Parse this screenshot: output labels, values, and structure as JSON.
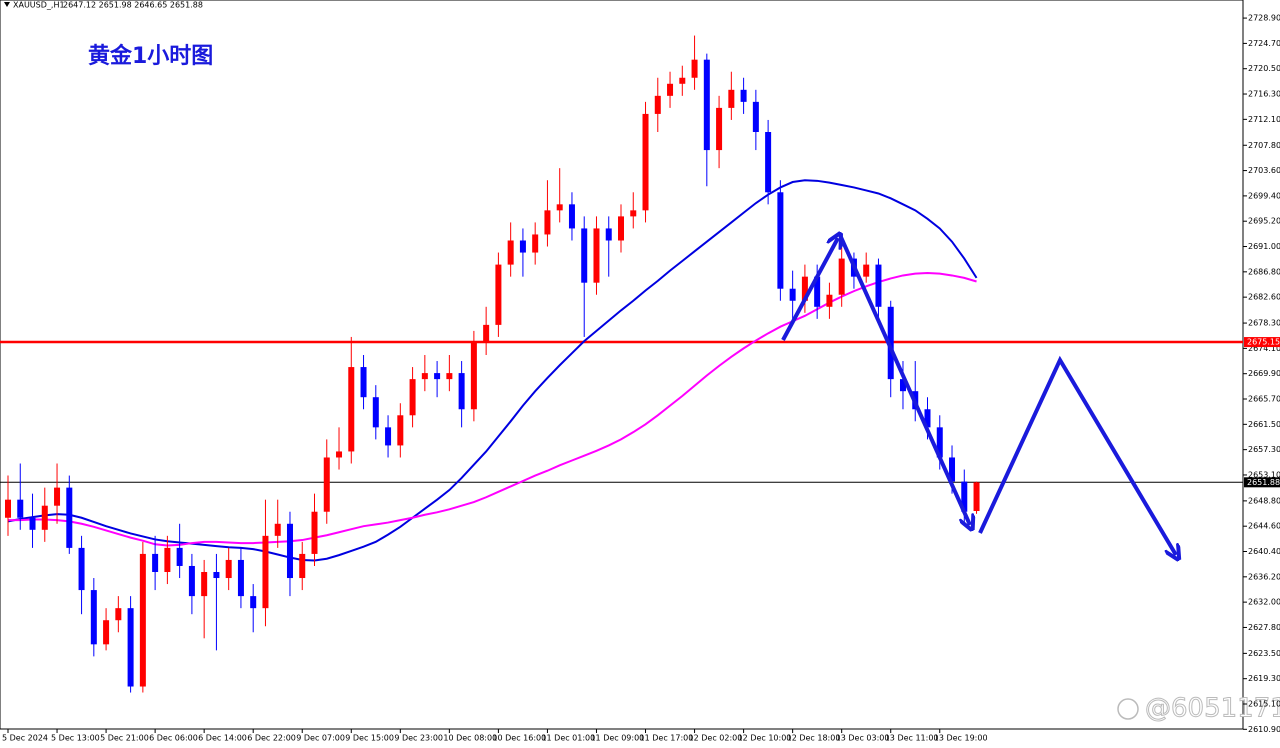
{
  "header": {
    "symbol": "XAUUSD_,H1",
    "ohlc_text": "2647.12 2651.98 2646.65 2651.88"
  },
  "watermark": "@6051171",
  "chart_data": {
    "type": "candlestick",
    "title": "黄金1小时图",
    "up_color": "#ff0000",
    "down_color": "#0000ff",
    "categories": [
      "5 Dec 2024",
      null,
      null,
      null,
      "5 Dec 13:00",
      null,
      null,
      null,
      "5 Dec 21:00",
      null,
      null,
      null,
      "6 Dec 06:00",
      null,
      null,
      null,
      "6 Dec 14:00",
      null,
      null,
      null,
      "6 Dec 22:00",
      null,
      null,
      null,
      "9 Dec 07:00",
      null,
      null,
      null,
      "9 Dec 15:00",
      null,
      null,
      null,
      "9 Dec 23:00",
      null,
      null,
      null,
      "10 Dec 08:00",
      null,
      null,
      null,
      "10 Dec 16:00",
      null,
      null,
      null,
      "11 Dec 01:00",
      null,
      null,
      null,
      "11 Dec 09:00",
      null,
      null,
      null,
      "11 Dec 17:00",
      null,
      null,
      null,
      "12 Dec 02:00",
      null,
      null,
      null,
      "12 Dec 10:00",
      null,
      null,
      null,
      "12 Dec 18:00",
      null,
      null,
      null,
      "13 Dec 03:00",
      null,
      null,
      null,
      "13 Dec 11:00",
      null,
      null,
      null,
      "13 Dec 19:00",
      null,
      null,
      null
    ],
    "open": [
      2646,
      2649,
      2646,
      2644,
      2648,
      2651,
      2641,
      2634,
      2625,
      2629,
      2631,
      2618,
      2640,
      2637,
      2641,
      2638,
      2633,
      2637,
      2636,
      2639,
      2633,
      2631,
      2643,
      2645,
      2636,
      2640,
      2647,
      2656,
      2657,
      2671,
      2666,
      2661,
      2658,
      2663,
      2669,
      2670,
      2669,
      2670,
      2664,
      2675,
      2678,
      2688,
      2692,
      2690,
      2693,
      2697,
      2698,
      2694,
      2685,
      2694,
      2692,
      2696,
      2697,
      2713,
      2716,
      2718,
      2719,
      2722,
      2707,
      2714,
      2717,
      2715,
      2710,
      2700,
      2684,
      2682,
      2686,
      2681,
      2683,
      2689,
      2686,
      2688,
      2681,
      2669,
      2667,
      2664,
      2661,
      2656,
      2652,
      2647.12
    ],
    "high": [
      2653,
      2655,
      2650,
      2651,
      2655,
      2653,
      2643,
      2636,
      2631,
      2633,
      2633,
      2642,
      2643,
      2643,
      2645,
      2640,
      2639,
      2640,
      2641,
      2641,
      2635,
      2649,
      2649,
      2647,
      2642,
      2650,
      2659,
      2661,
      2676,
      2673,
      2668,
      2663,
      2665,
      2671,
      2673,
      2672,
      2673,
      2672,
      2677,
      2681,
      2690,
      2695,
      2694,
      2695,
      2702,
      2704,
      2700,
      2696,
      2696,
      2696,
      2698,
      2700,
      2715,
      2719,
      2720,
      2721,
      2726,
      2723,
      2716,
      2720,
      2719,
      2717,
      2712,
      2702,
      2687,
      2688,
      2688,
      2685,
      2692,
      2690,
      2690,
      2689,
      2682,
      2672,
      2672,
      2666,
      2663,
      2658,
      2654,
      2651.98
    ],
    "low": [
      2643,
      2644,
      2641,
      2642,
      2645,
      2640,
      2630,
      2623,
      2624,
      2627,
      2617,
      2617,
      2634,
      2635,
      2636,
      2630,
      2626,
      2624,
      2634,
      2631,
      2627,
      2628,
      2641,
      2633,
      2634,
      2638,
      2645,
      2654,
      2655,
      2664,
      2659,
      2656,
      2656,
      2661,
      2667,
      2666,
      2667,
      2661,
      2662,
      2673,
      2676,
      2686,
      2686,
      2688,
      2691,
      2695,
      2692,
      2676,
      2683,
      2686,
      2690,
      2694,
      2695,
      2710,
      2714,
      2716,
      2717,
      2701,
      2704,
      2712,
      2713,
      2707,
      2698,
      2682,
      2679,
      2680,
      2679,
      2679,
      2681,
      2684,
      2685,
      2679,
      2666,
      2664,
      2662,
      2659,
      2654,
      2650,
      2645,
      2646.65
    ],
    "close": [
      2649,
      2646,
      2644,
      2648,
      2651,
      2641,
      2634,
      2625,
      2629,
      2631,
      2618,
      2640,
      2637,
      2641,
      2638,
      2633,
      2637,
      2636,
      2639,
      2633,
      2631,
      2643,
      2645,
      2636,
      2640,
      2647,
      2656,
      2657,
      2671,
      2666,
      2661,
      2658,
      2663,
      2669,
      2670,
      2669,
      2670,
      2664,
      2675,
      2678,
      2688,
      2692,
      2690,
      2693,
      2697,
      2698,
      2694,
      2685,
      2694,
      2692,
      2696,
      2697,
      2713,
      2716,
      2718,
      2719,
      2722,
      2707,
      2714,
      2717,
      2715,
      2710,
      2700,
      2684,
      2682,
      2686,
      2681,
      2683,
      2689,
      2686,
      2688,
      2681,
      2669,
      2667,
      2664,
      2661,
      2656,
      2652,
      2647,
      2651.88
    ],
    "series": [
      {
        "color": "#0000e0",
        "values": [
          2645.4,
          2645.8,
          2646.1,
          2646.4,
          2646.6,
          2646.5,
          2646,
          2645.3,
          2644.6,
          2644,
          2643.4,
          2642.9,
          2642.4,
          2642.1,
          2641.9,
          2641.7,
          2641.5,
          2641.3,
          2641.1,
          2641,
          2640.8,
          2640.4,
          2639.9,
          2639.4,
          2639,
          2638.9,
          2639.2,
          2639.8,
          2640.5,
          2641.2,
          2642,
          2643.2,
          2644.5,
          2646,
          2647.5,
          2649,
          2650.6,
          2652.6,
          2654.8,
          2657,
          2659.5,
          2662,
          2664.6,
          2667,
          2669.2,
          2671.3,
          2673.3,
          2675.3,
          2677,
          2678.7,
          2680.4,
          2682,
          2683.7,
          2685.3,
          2687,
          2688.6,
          2690.2,
          2691.8,
          2693.4,
          2695,
          2696.6,
          2698.2,
          2699.6,
          2700.8,
          2701.7,
          2702,
          2701.9,
          2701.6,
          2701.2,
          2700.8,
          2700.3,
          2699.8,
          2699,
          2698,
          2697,
          2695.6,
          2694,
          2691.8,
          2689,
          2685.8
        ]
      },
      {
        "color": "#ff00ff",
        "values": [
          2645.6,
          2645.6,
          2645.7,
          2645.7,
          2645.6,
          2645.4,
          2645,
          2644.5,
          2643.9,
          2643.3,
          2642.7,
          2642.2,
          2641.6,
          2641.4,
          2641.5,
          2641.8,
          2642,
          2642,
          2641.9,
          2641.8,
          2641.8,
          2641.9,
          2642,
          2642.1,
          2642.3,
          2642.7,
          2643.1,
          2643.6,
          2644.1,
          2644.6,
          2644.9,
          2645.2,
          2645.6,
          2646,
          2646.5,
          2646.9,
          2647.4,
          2648,
          2648.6,
          2649.4,
          2650.3,
          2651.2,
          2652.1,
          2653,
          2653.8,
          2654.7,
          2655.5,
          2656.3,
          2657.1,
          2658,
          2659,
          2660.2,
          2661.5,
          2663,
          2664.6,
          2666.2,
          2667.9,
          2669.6,
          2671.2,
          2672.7,
          2674.1,
          2675.4,
          2676.6,
          2677.7,
          2678.6,
          2679.5,
          2680.6,
          2681.7,
          2682.7,
          2683.6,
          2684.4,
          2685.1,
          2685.7,
          2686.2,
          2686.5,
          2686.6,
          2686.5,
          2686.2,
          2685.8,
          2685.2
        ]
      }
    ],
    "hlines": [
      {
        "value": 2675.15,
        "color": "#ff0000"
      },
      {
        "value": 2651.88,
        "color": "#000000"
      }
    ],
    "ylim": [
      2607.8,
      2731.9
    ],
    "yticks": [
      {
        "value": 2728.9,
        "label": "2728.90"
      },
      {
        "value": 2724.7,
        "label": "2724.70"
      },
      {
        "value": 2720.5,
        "label": "2720.50"
      },
      {
        "value": 2716.3,
        "label": "2716.30"
      },
      {
        "value": 2712.1,
        "label": "2712.10"
      },
      {
        "value": 2707.8,
        "label": "2707.80"
      },
      {
        "value": 2703.6,
        "label": "2703.60"
      },
      {
        "value": 2699.4,
        "label": "2699.40"
      },
      {
        "value": 2695.2,
        "label": "2695.20"
      },
      {
        "value": 2691,
        "label": "2691.00"
      },
      {
        "value": 2686.8,
        "label": "2686.80"
      },
      {
        "value": 2682.6,
        "label": "2682.60"
      },
      {
        "value": 2678.3,
        "label": "2678.30"
      },
      {
        "value": 2674.1,
        "label": "2674.10"
      },
      {
        "value": 2669.9,
        "label": "2669.90"
      },
      {
        "value": 2665.7,
        "label": "2665.70"
      },
      {
        "value": 2661.5,
        "label": "2661.50"
      },
      {
        "value": 2657.3,
        "label": "2657.30"
      },
      {
        "value": 2653.1,
        "label": "2653.10"
      },
      {
        "value": 2648.8,
        "label": "2648.80"
      },
      {
        "value": 2644.6,
        "label": "2644.60"
      },
      {
        "value": 2640.4,
        "label": "2640.40"
      },
      {
        "value": 2636.2,
        "label": "2636.20"
      },
      {
        "value": 2632,
        "label": "2632.00"
      },
      {
        "value": 2627.8,
        "label": "2627.80"
      },
      {
        "value": 2623.5,
        "label": "2623.50"
      },
      {
        "value": 2619.3,
        "label": "2619.30"
      },
      {
        "value": 2615.1,
        "label": "2615.10"
      },
      {
        "value": 2610.9,
        "label": "2610.90"
      }
    ]
  }
}
